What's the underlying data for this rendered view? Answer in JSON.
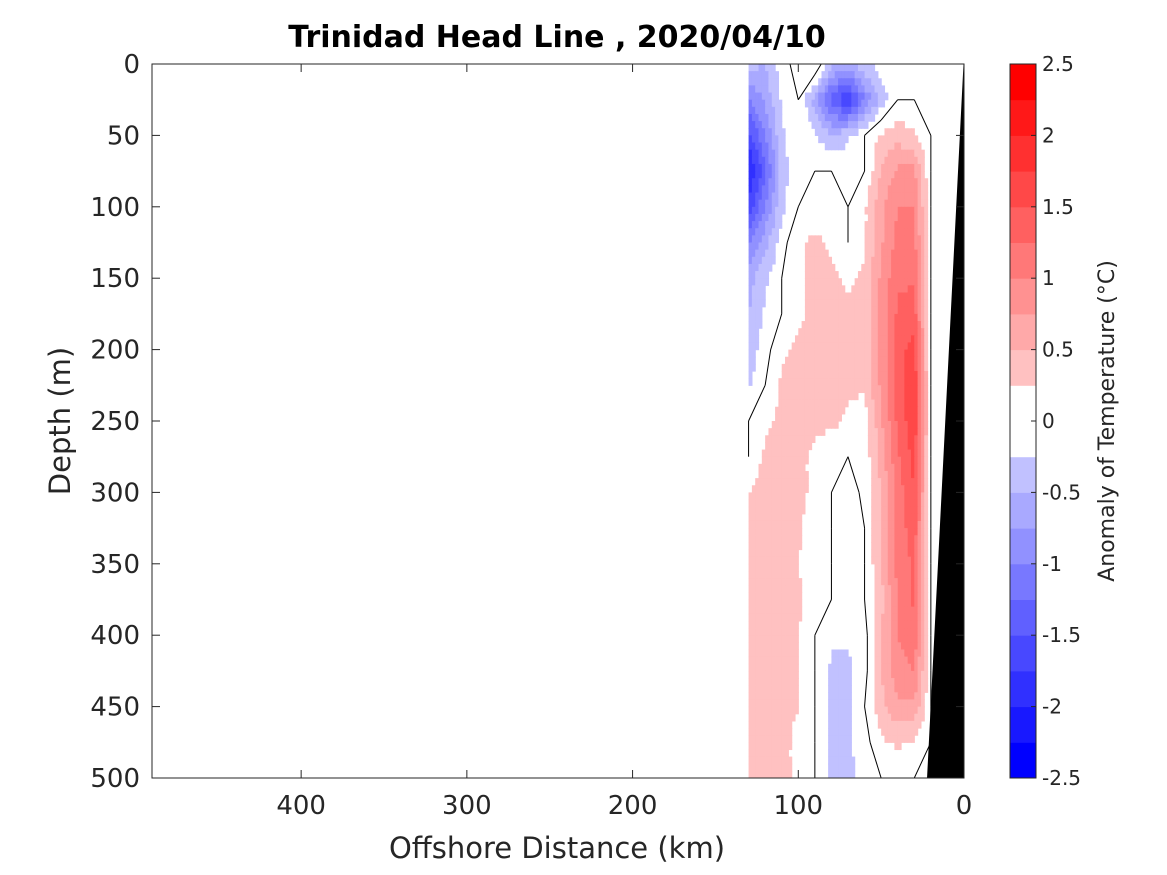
{
  "chart_data": {
    "type": "heatmap",
    "title": "Trinidad Head Line , 2020/04/10",
    "xlabel": "Offshore Distance (km)",
    "ylabel": "Depth (m)",
    "colorbar_label": "Anomaly of Temperature (°C)",
    "xlim": [
      490,
      0
    ],
    "ylim": [
      0,
      500
    ],
    "x_reversed": true,
    "y_reversed": true,
    "x_ticks": [
      400,
      300,
      200,
      100,
      0
    ],
    "y_ticks": [
      0,
      50,
      100,
      150,
      200,
      250,
      300,
      350,
      400,
      450,
      500
    ],
    "colorbar_range": [
      -2.5,
      2.5
    ],
    "colorbar_step": 0.25,
    "colorbar_ticks": [
      2.5,
      2,
      1.5,
      1,
      0.5,
      0,
      -0.5,
      -1,
      -1.5,
      -2,
      -2.5
    ],
    "colorbar_tick_labels": [
      "2.5",
      "2",
      "1.5",
      "1",
      "0.5",
      "0",
      "-0.5",
      "-1",
      "-1.5",
      "-2",
      "-2.5"
    ],
    "colors": {
      "positive": "#ff0000",
      "negative": "#0000ff",
      "zero": "#ffffff",
      "bottom_topography": "#000000",
      "zero_contour": "#000000"
    },
    "grid": false,
    "colorbar_position": "right",
    "data_extent_km": [
      0,
      130
    ],
    "field": {
      "x_km": [
        130,
        120,
        110,
        100,
        90,
        80,
        70,
        60,
        50,
        40,
        30,
        20
      ],
      "depth_m": [
        0,
        25,
        50,
        75,
        100,
        125,
        150,
        175,
        200,
        225,
        250,
        275,
        300,
        325,
        350,
        375,
        400,
        425,
        450,
        475,
        500
      ],
      "anomaly_c": [
        [
          -0.4,
          -0.5,
          -0.1,
          0.1,
          0.25,
          -0.4,
          -0.5,
          -0.3,
          -0.1,
          0,
          0,
          0
        ],
        [
          -1.0,
          -0.7,
          -0.2,
          0,
          -0.6,
          -1.4,
          -1.8,
          -1.0,
          -0.4,
          0,
          0,
          0
        ],
        [
          -1.6,
          -1.0,
          -0.3,
          0,
          -0.2,
          -0.5,
          -0.3,
          0,
          0.3,
          0.4,
          0.3,
          0
        ],
        [
          -2.1,
          -1.3,
          -0.4,
          0,
          0,
          0,
          0,
          0,
          0.5,
          0.8,
          0.8,
          0
        ],
        [
          -1.7,
          -1.0,
          -0.3,
          0,
          0.1,
          0.1,
          0,
          0.2,
          0.7,
          1.0,
          1.0,
          0
        ],
        [
          -1.0,
          -0.6,
          -0.1,
          0.2,
          0.3,
          0.2,
          0,
          0.2,
          0.7,
          1.1,
          1.1,
          0
        ],
        [
          -0.6,
          -0.3,
          0,
          0.2,
          0.3,
          0.3,
          0.2,
          0.3,
          0.8,
          1.2,
          1.2,
          0
        ],
        [
          -0.5,
          -0.2,
          0,
          0.2,
          0.3,
          0.3,
          0.3,
          0.3,
          0.8,
          1.3,
          1.4,
          0
        ],
        [
          -0.4,
          -0.1,
          0.2,
          0.3,
          0.3,
          0.3,
          0.3,
          0.3,
          0.8,
          1.4,
          1.6,
          0
        ],
        [
          -0.3,
          0,
          0.3,
          0.4,
          0.4,
          0.35,
          0.3,
          0.3,
          0.8,
          1.4,
          1.7,
          0
        ],
        [
          0,
          0.2,
          0.3,
          0.3,
          0.3,
          0.3,
          0.2,
          0.1,
          0.7,
          1.3,
          1.7,
          0
        ],
        [
          0,
          0.3,
          0.35,
          0.3,
          0.2,
          0.1,
          0,
          0.1,
          0.6,
          1.2,
          1.6,
          0
        ],
        [
          0.25,
          0.4,
          0.35,
          0.3,
          0.2,
          0,
          -0.2,
          0.1,
          0.5,
          1.1,
          1.5,
          0
        ],
        [
          0.3,
          0.4,
          0.35,
          0.3,
          0.1,
          0,
          -0.1,
          0,
          0.5,
          1.1,
          1.4,
          0
        ],
        [
          0.4,
          0.4,
          0.3,
          0.25,
          0.1,
          0,
          -0.2,
          0,
          0.5,
          1.1,
          1.3,
          0
        ],
        [
          0.3,
          0.35,
          0.35,
          0.3,
          0.1,
          0,
          -0.1,
          0,
          0.4,
          1.0,
          1.3,
          0
        ],
        [
          0.3,
          0.3,
          0.3,
          0.25,
          0,
          -0.2,
          -0.2,
          -0.1,
          0.5,
          1.0,
          1.2,
          0
        ],
        [
          0.25,
          0.25,
          0.3,
          0.25,
          0,
          -0.3,
          -0.3,
          -0.1,
          0.5,
          0.9,
          1.0,
          0
        ],
        [
          0.3,
          0.3,
          0.3,
          0.25,
          0,
          -0.3,
          -0.3,
          0,
          0.4,
          0.7,
          0.7,
          0
        ],
        [
          0.4,
          0.35,
          0.3,
          0.2,
          0,
          -0.3,
          -0.3,
          -0.1,
          0.2,
          0.3,
          0.2,
          0
        ],
        [
          0.4,
          0.35,
          0.3,
          0.2,
          0,
          -0.3,
          -0.3,
          -0.2,
          0,
          0,
          0,
          0
        ]
      ]
    }
  }
}
